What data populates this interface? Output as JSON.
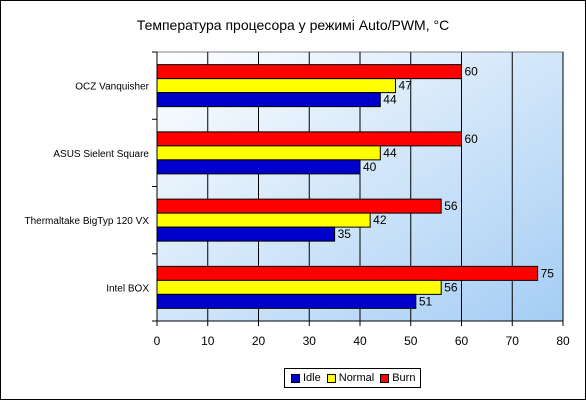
{
  "chart_data": {
    "type": "bar",
    "orientation": "horizontal",
    "title": "Температура процесора у режимі Auto/PWM, °С",
    "categories": [
      "OCZ Vanquisher",
      "ASUS Sielent Square",
      "Thermaltake BigTyp 120 VX",
      "Intel BOX"
    ],
    "series": [
      {
        "name": "Burn",
        "color": "#ff0000",
        "values": [
          60,
          60,
          56,
          75
        ]
      },
      {
        "name": "Normal",
        "color": "#ffff00",
        "values": [
          47,
          44,
          42,
          56
        ]
      },
      {
        "name": "Idle",
        "color": "#0000cc",
        "values": [
          44,
          40,
          35,
          51
        ]
      }
    ],
    "legend_order": [
      "Idle",
      "Normal",
      "Burn"
    ],
    "xlim": [
      0,
      80
    ],
    "x_ticks": [
      0,
      10,
      20,
      30,
      40,
      50,
      60,
      70,
      80
    ],
    "grid": true,
    "legend_position": "bottom",
    "background": "gradient-white-to-light-blue"
  }
}
